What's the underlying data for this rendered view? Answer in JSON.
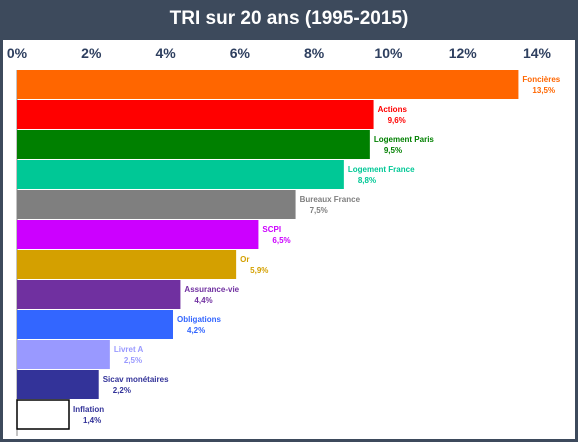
{
  "chart_data": {
    "type": "bar",
    "orientation": "horizontal",
    "title": "TRI sur 20 ans (1995-2015)",
    "xlim": [
      0,
      14
    ],
    "xticks": [
      "0%",
      "2%",
      "4%",
      "6%",
      "8%",
      "10%",
      "12%",
      "14%"
    ],
    "grid": false,
    "legend": "none",
    "series": [
      {
        "values": [
          13.5,
          9.6,
          9.5,
          8.8,
          7.5,
          6.5,
          5.9,
          4.4,
          4.2,
          2.5,
          2.2,
          1.4
        ]
      }
    ],
    "categories": [
      "Foncières",
      "Actions",
      "Logement Paris",
      "Logement France",
      "Bureaux France",
      "SCPI",
      "Or",
      "Assurance-vie",
      "Obligations",
      "Livret A",
      "Sicav monétaires",
      "Inflation"
    ],
    "value_labels": [
      "13,5%",
      "9,6%",
      "9,5%",
      "8,8%",
      "7,5%",
      "6,5%",
      "5,9%",
      "4,4%",
      "4,2%",
      "2,5%",
      "2,2%",
      "1,4%"
    ],
    "bar_colors": [
      "#ff6600",
      "#ff0000",
      "#008000",
      "#00c896",
      "#7f7f7f",
      "#cc00ff",
      "#d4a000",
      "#7030a0",
      "#3366ff",
      "#9999ff",
      "#333399",
      "#ffffff"
    ],
    "label_colors": [
      "#ff6600",
      "#ff0000",
      "#008000",
      "#00c896",
      "#7f7f7f",
      "#cc00ff",
      "#d4a000",
      "#7030a0",
      "#3366ff",
      "#9999ff",
      "#333399",
      "#333399"
    ]
  },
  "colors": {
    "background": "#3d4a5c",
    "axis_text": "#2e3f5f"
  }
}
